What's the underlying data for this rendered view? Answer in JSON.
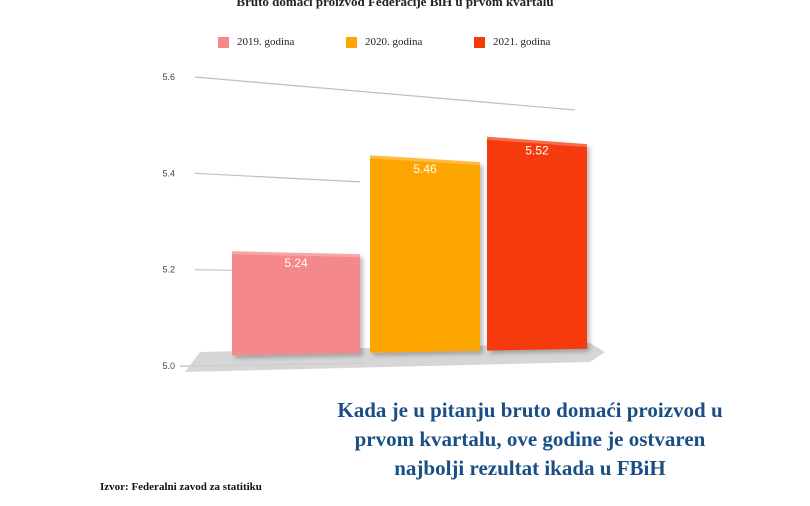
{
  "chart_data": {
    "type": "bar",
    "title": "Bruto domaći proizvod Federacije BiH u prvom kvartalu",
    "categories": [
      "2019. godina",
      "2020. godina",
      "2021. godina"
    ],
    "values": [
      5.24,
      5.46,
      5.52
    ],
    "value_labels": [
      "5.24",
      "5.46",
      "5.52"
    ],
    "colors": [
      "#f4888b",
      "#fea600",
      "#f53a08"
    ],
    "xlabel": "",
    "ylabel": "",
    "ylim": [
      5.0,
      5.6
    ],
    "yticks": [
      "5.0",
      "5.2",
      "5.4",
      "5.6"
    ],
    "grid": true,
    "legend": {
      "position": "top",
      "items": [
        {
          "label": "2019. godina",
          "color": "#f4888b"
        },
        {
          "label": "2020. godina",
          "color": "#fea600"
        },
        {
          "label": "2021. godina",
          "color": "#f53a08"
        }
      ]
    }
  },
  "source": "Izvor: Federalni zavod za statitiku",
  "headline": "Kada je u pitanju bruto domaći proizvod u prvom kvartalu, ove godine je ostvaren najbolji rezultat ikada u FBiH"
}
